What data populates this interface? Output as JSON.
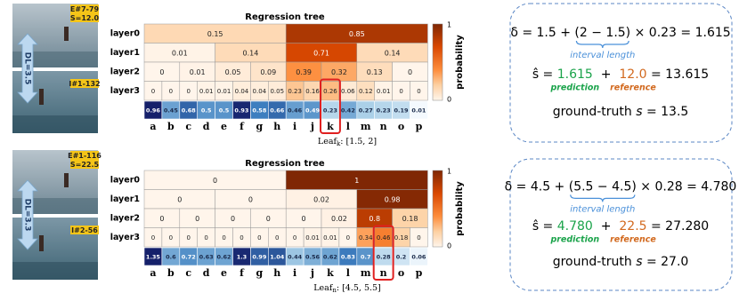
{
  "panels": [
    {
      "images": {
        "event": "E#7-79",
        "score": "S=12.0",
        "difficulty": "DL=3.5",
        "id": "I#1-132"
      },
      "tree": {
        "title": "Regression tree",
        "layer_names": [
          "layer0",
          "layer1",
          "layer2",
          "layer3"
        ],
        "layers": [
          [
            0.15,
            0.85
          ],
          [
            0.01,
            0.14,
            0.71,
            0.14
          ],
          [
            0,
            0.01,
            0.05,
            0.09,
            0.39,
            0.32,
            0.13,
            0
          ],
          [
            0,
            0,
            0,
            0.01,
            0.01,
            0.04,
            0.04,
            0.05,
            0.23,
            0.16,
            0.26,
            0.06,
            0.12,
            0.01,
            0,
            0
          ]
        ],
        "leaves": [
          0.96,
          0.45,
          0.68,
          0.5,
          0.5,
          0.93,
          0.58,
          0.66,
          0.46,
          0.49,
          0.23,
          0.42,
          0.27,
          0.23,
          0.19,
          0.01
        ],
        "leaf_letters": [
          "a",
          "b",
          "c",
          "d",
          "e",
          "f",
          "g",
          "h",
          "i",
          "j",
          "k",
          "l",
          "m",
          "n",
          "o",
          "p"
        ],
        "highlight": 10,
        "leaf_label": {
          "name": "Leaf",
          "sub": "k",
          "range": ": [1.5, 2]"
        },
        "colorbar": {
          "max": "1",
          "min": "0",
          "label": "probability"
        }
      },
      "equation": {
        "line1_pre": "δ = 1.5 + ",
        "line1_interval": "(2 − 1.5)",
        "line1_post": " × 0.23 = 1.615",
        "interval_label": "interval length",
        "line2_pre": "ŝ = ",
        "prediction_value": "1.615",
        "plus": "  +  ",
        "reference_value": "12.0",
        "line2_post": " = 13.615",
        "prediction_label": "prediction",
        "reference_label": "reference",
        "line3_pre": "ground-truth ",
        "line3_var": "s",
        "line3_post": " = 13.5"
      }
    },
    {
      "images": {
        "event": "E#1-116",
        "score": "S=22.5",
        "difficulty": "DL=3.3",
        "id": "I#2-56"
      },
      "tree": {
        "title": "Regression tree",
        "layer_names": [
          "layer0",
          "layer1",
          "layer2",
          "layer3"
        ],
        "layers": [
          [
            0,
            1
          ],
          [
            0,
            0,
            0.02,
            0.98
          ],
          [
            0,
            0,
            0,
            0,
            0,
            0.02,
            0.8,
            0.18
          ],
          [
            0,
            0,
            0,
            0,
            0,
            0,
            0,
            0,
            0,
            0.01,
            0.01,
            0,
            0.34,
            0.46,
            0.18,
            0
          ]
        ],
        "leaves": [
          1.35,
          0.6,
          0.72,
          0.63,
          0.62,
          1.3,
          0.99,
          1.04,
          0.44,
          0.56,
          0.62,
          0.83,
          0.7,
          0.28,
          0.2,
          0.06
        ],
        "leaf_letters": [
          "a",
          "b",
          "c",
          "d",
          "e",
          "f",
          "g",
          "h",
          "i",
          "j",
          "k",
          "l",
          "m",
          "n",
          "o",
          "p"
        ],
        "highlight": 13,
        "leaf_label": {
          "name": "Leaf",
          "sub": "n",
          "range": ": [4.5, 5.5]"
        },
        "colorbar": {
          "max": "1",
          "min": "0",
          "label": "probability"
        }
      },
      "equation": {
        "line1_pre": "δ = 4.5 + ",
        "line1_interval": "(5.5 − 4.5)",
        "line1_post": " × 0.28 = 4.780",
        "interval_label": "interval length",
        "line2_pre": "ŝ = ",
        "prediction_value": "4.780",
        "plus": "  +  ",
        "reference_value": "22.5",
        "line2_post": " = 27.280",
        "prediction_label": "prediction",
        "reference_label": "reference",
        "line3_pre": "ground-truth ",
        "line3_var": "s",
        "line3_post": " = 27.0"
      }
    }
  ]
}
